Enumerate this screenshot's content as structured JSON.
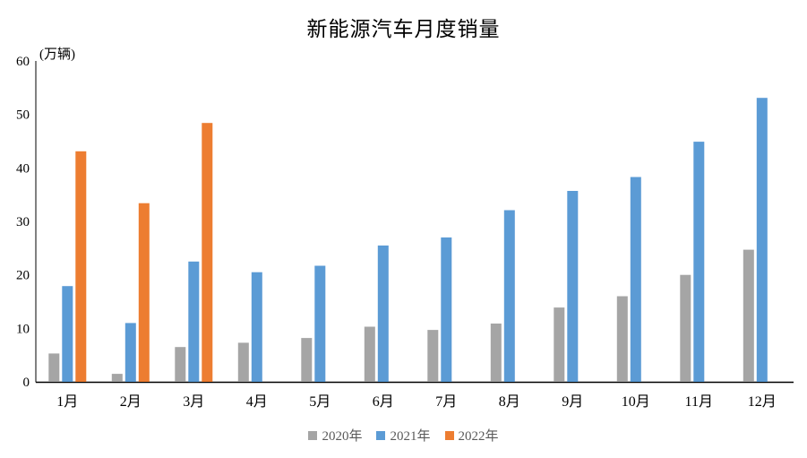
{
  "page": {
    "background": "#ffffff"
  },
  "chart_data": {
    "type": "bar",
    "title": "新能源汽车月度销量",
    "unit_label": "(万辆)",
    "categories": [
      "1月",
      "2月",
      "3月",
      "4月",
      "5月",
      "6月",
      "7月",
      "8月",
      "9月",
      "10月",
      "11月",
      "12月"
    ],
    "series": [
      {
        "name": "2020年",
        "color": "#A5A5A5",
        "values": [
          5.3,
          1.5,
          6.5,
          7.3,
          8.2,
          10.3,
          9.7,
          10.9,
          13.9,
          16.0,
          20.0,
          24.7
        ]
      },
      {
        "name": "2021年",
        "color": "#5B9BD5",
        "values": [
          17.9,
          11.0,
          22.5,
          20.5,
          21.7,
          25.5,
          27.0,
          32.1,
          35.7,
          38.3,
          44.9,
          53.1
        ]
      },
      {
        "name": "2022年",
        "color": "#ED7D31",
        "values": [
          43.1,
          33.4,
          48.4,
          null,
          null,
          null,
          null,
          null,
          null,
          null,
          null,
          null
        ]
      }
    ],
    "ylim": [
      0,
      60
    ],
    "yticks": [
      0,
      10,
      20,
      30,
      40,
      50,
      60
    ],
    "grid": false,
    "legend_position": "bottom",
    "axis_color": "#000000",
    "tick_label_color": "#000000",
    "legend_text_color": "#595959"
  }
}
